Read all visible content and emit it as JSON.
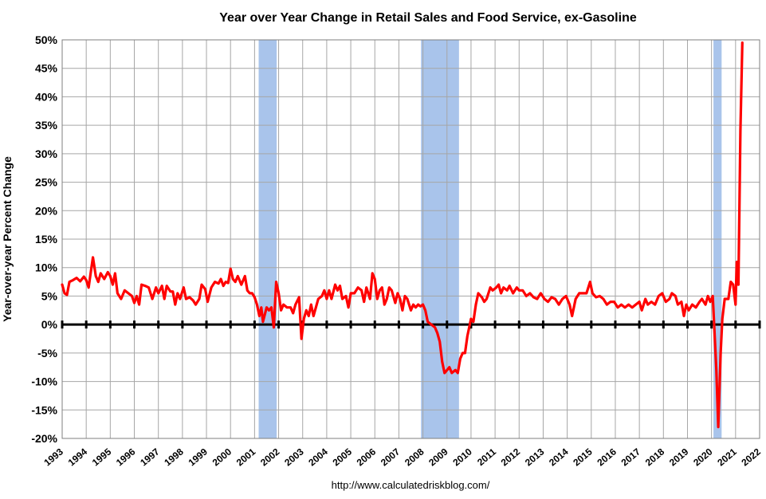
{
  "chart_data": {
    "type": "line",
    "title": "Year over Year Change in Retail Sales and Food Service, ex-Gasoline",
    "xlabel": "",
    "ylabel": "Year-over-year Percent Change",
    "source": "http://www.calculatedriskblog.com/",
    "xlim": [
      1993,
      2022
    ],
    "ylim": [
      -20,
      50
    ],
    "y_ticks": [
      "50%",
      "45%",
      "40%",
      "35%",
      "30%",
      "25%",
      "20%",
      "15%",
      "10%",
      "5%",
      "0%",
      "-5%",
      "-10%",
      "-15%",
      "-20%"
    ],
    "x_ticks": [
      "1993",
      "1994",
      "1995",
      "1996",
      "1997",
      "1998",
      "1999",
      "2000",
      "2001",
      "2002",
      "2003",
      "2004",
      "2005",
      "2006",
      "2007",
      "2008",
      "2009",
      "2010",
      "2011",
      "2012",
      "2013",
      "2014",
      "2015",
      "2016",
      "2017",
      "2018",
      "2019",
      "2020",
      "2021",
      "2022"
    ],
    "grid": true,
    "colors": {
      "line": "#ff0000",
      "recession": "#a9c4eb",
      "zero_line": "#000000",
      "grid": "#a6a6a6"
    },
    "recessions": [
      {
        "start": 2001.17,
        "end": 2001.92
      },
      {
        "start": 2007.92,
        "end": 2009.5
      },
      {
        "start": 2020.08,
        "end": 2020.42
      }
    ],
    "points": [
      [
        1993.0,
        7.0
      ],
      [
        1993.1,
        5.5
      ],
      [
        1993.2,
        5.2
      ],
      [
        1993.3,
        7.5
      ],
      [
        1993.45,
        7.8
      ],
      [
        1993.6,
        8.2
      ],
      [
        1993.75,
        7.6
      ],
      [
        1993.9,
        8.4
      ],
      [
        1994.0,
        7.8
      ],
      [
        1994.1,
        6.5
      ],
      [
        1994.2,
        9.5
      ],
      [
        1994.28,
        11.8
      ],
      [
        1994.4,
        8.5
      ],
      [
        1994.5,
        7.5
      ],
      [
        1994.6,
        9.0
      ],
      [
        1994.75,
        8.0
      ],
      [
        1994.9,
        9.2
      ],
      [
        1995.0,
        8.5
      ],
      [
        1995.1,
        7.0
      ],
      [
        1995.2,
        9.0
      ],
      [
        1995.3,
        5.5
      ],
      [
        1995.45,
        4.5
      ],
      [
        1995.6,
        6.0
      ],
      [
        1995.75,
        5.5
      ],
      [
        1995.9,
        5.0
      ],
      [
        1996.0,
        3.8
      ],
      [
        1996.1,
        5.0
      ],
      [
        1996.2,
        3.5
      ],
      [
        1996.3,
        7.0
      ],
      [
        1996.45,
        6.8
      ],
      [
        1996.6,
        6.5
      ],
      [
        1996.75,
        4.5
      ],
      [
        1996.9,
        6.5
      ],
      [
        1997.0,
        5.5
      ],
      [
        1997.15,
        6.8
      ],
      [
        1997.25,
        4.5
      ],
      [
        1997.35,
        6.8
      ],
      [
        1997.5,
        5.8
      ],
      [
        1997.6,
        5.8
      ],
      [
        1997.7,
        3.5
      ],
      [
        1997.8,
        5.5
      ],
      [
        1997.9,
        4.5
      ],
      [
        1998.05,
        6.5
      ],
      [
        1998.15,
        4.5
      ],
      [
        1998.3,
        4.8
      ],
      [
        1998.45,
        4.2
      ],
      [
        1998.55,
        3.5
      ],
      [
        1998.7,
        4.5
      ],
      [
        1998.8,
        7.0
      ],
      [
        1998.95,
        6.2
      ],
      [
        1999.05,
        4.0
      ],
      [
        1999.2,
        6.5
      ],
      [
        1999.35,
        7.5
      ],
      [
        1999.5,
        7.2
      ],
      [
        1999.6,
        8.0
      ],
      [
        1999.7,
        6.8
      ],
      [
        1999.8,
        7.5
      ],
      [
        1999.9,
        7.3
      ],
      [
        2000.0,
        9.8
      ],
      [
        2000.1,
        8.0
      ],
      [
        2000.2,
        7.5
      ],
      [
        2000.3,
        8.5
      ],
      [
        2000.45,
        7.0
      ],
      [
        2000.6,
        8.5
      ],
      [
        2000.7,
        6.0
      ],
      [
        2000.8,
        5.5
      ],
      [
        2000.9,
        5.5
      ],
      [
        2001.0,
        4.8
      ],
      [
        2001.1,
        3.5
      ],
      [
        2001.2,
        1.5
      ],
      [
        2001.28,
        3.0
      ],
      [
        2001.35,
        0.5
      ],
      [
        2001.5,
        3.0
      ],
      [
        2001.6,
        2.5
      ],
      [
        2001.7,
        3.0
      ],
      [
        2001.8,
        -0.5
      ],
      [
        2001.9,
        7.5
      ],
      [
        2002.0,
        5.5
      ],
      [
        2002.1,
        2.5
      ],
      [
        2002.2,
        3.5
      ],
      [
        2002.35,
        3.0
      ],
      [
        2002.5,
        3.0
      ],
      [
        2002.6,
        2.0
      ],
      [
        2002.7,
        3.5
      ],
      [
        2002.85,
        4.8
      ],
      [
        2002.95,
        -2.5
      ],
      [
        2003.05,
        1.0
      ],
      [
        2003.15,
        2.5
      ],
      [
        2003.25,
        1.5
      ],
      [
        2003.35,
        3.5
      ],
      [
        2003.45,
        1.5
      ],
      [
        2003.55,
        3.0
      ],
      [
        2003.65,
        4.5
      ],
      [
        2003.8,
        5.0
      ],
      [
        2003.9,
        6.0
      ],
      [
        2004.0,
        4.5
      ],
      [
        2004.1,
        6.0
      ],
      [
        2004.2,
        4.5
      ],
      [
        2004.35,
        7.0
      ],
      [
        2004.45,
        6.0
      ],
      [
        2004.55,
        6.8
      ],
      [
        2004.65,
        4.5
      ],
      [
        2004.8,
        5.0
      ],
      [
        2004.9,
        3.0
      ],
      [
        2005.0,
        5.5
      ],
      [
        2005.15,
        5.5
      ],
      [
        2005.3,
        6.5
      ],
      [
        2005.45,
        6.0
      ],
      [
        2005.55,
        4.0
      ],
      [
        2005.65,
        6.5
      ],
      [
        2005.8,
        4.5
      ],
      [
        2005.9,
        9.0
      ],
      [
        2006.0,
        8.0
      ],
      [
        2006.1,
        4.5
      ],
      [
        2006.2,
        6.0
      ],
      [
        2006.3,
        6.5
      ],
      [
        2006.4,
        3.5
      ],
      [
        2006.5,
        4.5
      ],
      [
        2006.6,
        6.5
      ],
      [
        2006.7,
        6.0
      ],
      [
        2006.85,
        3.8
      ],
      [
        2006.95,
        5.5
      ],
      [
        2007.05,
        4.5
      ],
      [
        2007.15,
        2.5
      ],
      [
        2007.25,
        5.0
      ],
      [
        2007.35,
        4.5
      ],
      [
        2007.5,
        2.5
      ],
      [
        2007.6,
        3.5
      ],
      [
        2007.7,
        3.0
      ],
      [
        2007.8,
        3.5
      ],
      [
        2007.9,
        3.2
      ],
      [
        2008.0,
        3.5
      ],
      [
        2008.1,
        2.5
      ],
      [
        2008.2,
        0.5
      ],
      [
        2008.35,
        0.0
      ],
      [
        2008.5,
        -0.5
      ],
      [
        2008.6,
        -1.5
      ],
      [
        2008.7,
        -3.0
      ],
      [
        2008.8,
        -6.5
      ],
      [
        2008.9,
        -8.5
      ],
      [
        2009.0,
        -8.0
      ],
      [
        2009.1,
        -7.5
      ],
      [
        2009.2,
        -8.5
      ],
      [
        2009.35,
        -8.0
      ],
      [
        2009.45,
        -8.5
      ],
      [
        2009.55,
        -6.0
      ],
      [
        2009.65,
        -5.0
      ],
      [
        2009.75,
        -5.0
      ],
      [
        2009.85,
        -2.0
      ],
      [
        2010.0,
        1.0
      ],
      [
        2010.1,
        0.5
      ],
      [
        2010.2,
        3.5
      ],
      [
        2010.3,
        5.5
      ],
      [
        2010.45,
        4.8
      ],
      [
        2010.55,
        4.0
      ],
      [
        2010.65,
        4.5
      ],
      [
        2010.8,
        6.5
      ],
      [
        2010.9,
        6.0
      ],
      [
        2011.05,
        6.5
      ],
      [
        2011.15,
        7.0
      ],
      [
        2011.25,
        5.5
      ],
      [
        2011.35,
        6.5
      ],
      [
        2011.5,
        6.0
      ],
      [
        2011.6,
        6.8
      ],
      [
        2011.75,
        5.5
      ],
      [
        2011.9,
        6.5
      ],
      [
        2012.0,
        6.0
      ],
      [
        2012.15,
        6.0
      ],
      [
        2012.3,
        5.0
      ],
      [
        2012.45,
        5.5
      ],
      [
        2012.6,
        4.8
      ],
      [
        2012.75,
        4.5
      ],
      [
        2012.9,
        5.5
      ],
      [
        2013.05,
        4.5
      ],
      [
        2013.2,
        4.0
      ],
      [
        2013.35,
        4.8
      ],
      [
        2013.5,
        4.5
      ],
      [
        2013.65,
        3.5
      ],
      [
        2013.8,
        4.5
      ],
      [
        2013.95,
        5.0
      ],
      [
        2014.1,
        3.5
      ],
      [
        2014.2,
        1.5
      ],
      [
        2014.35,
        4.5
      ],
      [
        2014.5,
        5.5
      ],
      [
        2014.65,
        5.5
      ],
      [
        2014.8,
        5.5
      ],
      [
        2014.95,
        7.5
      ],
      [
        2015.05,
        5.5
      ],
      [
        2015.2,
        4.8
      ],
      [
        2015.35,
        5.0
      ],
      [
        2015.5,
        4.5
      ],
      [
        2015.65,
        3.5
      ],
      [
        2015.8,
        4.0
      ],
      [
        2015.95,
        4.0
      ],
      [
        2016.1,
        3.0
      ],
      [
        2016.25,
        3.5
      ],
      [
        2016.4,
        3.0
      ],
      [
        2016.55,
        3.5
      ],
      [
        2016.7,
        3.0
      ],
      [
        2016.85,
        3.5
      ],
      [
        2017.0,
        4.0
      ],
      [
        2017.1,
        2.5
      ],
      [
        2017.25,
        4.5
      ],
      [
        2017.35,
        3.5
      ],
      [
        2017.5,
        4.0
      ],
      [
        2017.65,
        3.5
      ],
      [
        2017.8,
        5.0
      ],
      [
        2017.95,
        5.5
      ],
      [
        2018.1,
        4.0
      ],
      [
        2018.25,
        4.5
      ],
      [
        2018.35,
        5.5
      ],
      [
        2018.5,
        5.0
      ],
      [
        2018.6,
        3.5
      ],
      [
        2018.75,
        4.0
      ],
      [
        2018.85,
        1.5
      ],
      [
        2018.95,
        3.5
      ],
      [
        2019.05,
        2.5
      ],
      [
        2019.2,
        3.5
      ],
      [
        2019.35,
        3.0
      ],
      [
        2019.5,
        4.0
      ],
      [
        2019.6,
        4.5
      ],
      [
        2019.75,
        3.5
      ],
      [
        2019.85,
        5.0
      ],
      [
        2019.95,
        4.0
      ],
      [
        2020.05,
        5.0
      ],
      [
        2020.2,
        -8.0
      ],
      [
        2020.28,
        -18.0
      ],
      [
        2020.38,
        -5.0
      ],
      [
        2020.45,
        1.0
      ],
      [
        2020.55,
        4.5
      ],
      [
        2020.7,
        4.5
      ],
      [
        2020.8,
        7.5
      ],
      [
        2020.9,
        7.0
      ],
      [
        2021.0,
        3.5
      ],
      [
        2021.05,
        11.0
      ],
      [
        2021.12,
        7.0
      ],
      [
        2021.2,
        34.0
      ],
      [
        2021.28,
        49.5
      ]
    ]
  }
}
